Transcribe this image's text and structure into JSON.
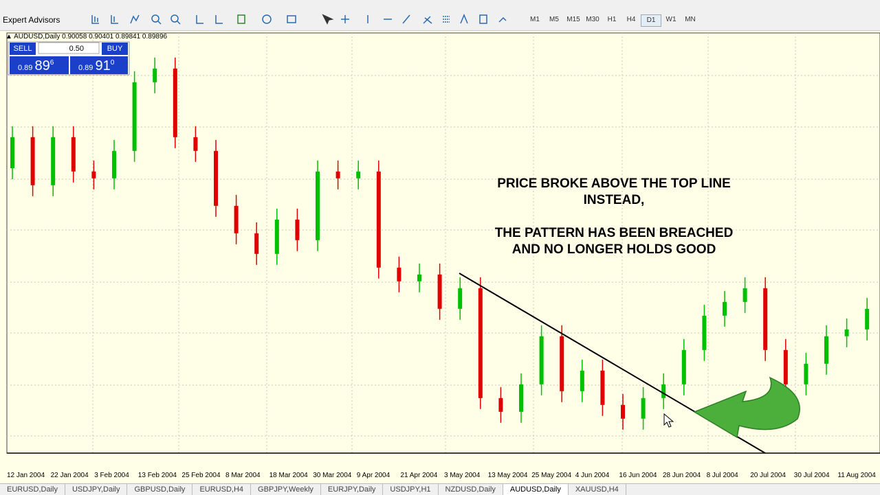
{
  "toolbar": {
    "expert_advisors": "Expert Advisors",
    "timeframes": [
      "M1",
      "M5",
      "M15",
      "M30",
      "H1",
      "H4",
      "D1",
      "W1",
      "MN"
    ],
    "active_timeframe": "D1"
  },
  "symbol_header": {
    "symbol": "AUDUSD,Daily",
    "ohlc": "0.90058 0.90401 0.89841 0.89896"
  },
  "trade_panel": {
    "sell": "SELL",
    "lot": "0.50",
    "buy": "BUY",
    "bid": {
      "big": "0.89",
      "main": "89",
      "sup": "6"
    },
    "ask": {
      "big": "0.89",
      "main": "91",
      "sup": "0"
    }
  },
  "chart_data": {
    "type": "candlestick",
    "annotation": [
      "PRICE BROKE ABOVE THE TOP LINE",
      "INSTEAD,",
      "THE PATTERN HAS BEEN BREACHED",
      "AND NO LONGER HOLDS GOOD"
    ],
    "x_labels": [
      "12 Jan 2004",
      "22 Jan 2004",
      "3 Feb 2004",
      "13 Feb 2004",
      "25 Feb 2004",
      "8 Mar 2004",
      "18 Mar 2004",
      "30 Mar 2004",
      "9 Apr 2004",
      "21 Apr 2004",
      "3 May 2004",
      "13 May 2004",
      "25 May 2004",
      "4 Jun 2004",
      "16 Jun 2004",
      "28 Jun 2004",
      "8 Jul 2004",
      "20 Jul 2004",
      "30 Jul 2004",
      "11 Aug 2004"
    ],
    "up_color": "#00c000",
    "down_color": "#e00000",
    "ylim": [
      0.665,
      0.815
    ],
    "open": [
      0.77,
      0.7813,
      0.7638,
      0.7813,
      0.7688,
      0.7663,
      0.7763,
      0.8013,
      0.8063,
      0.7813,
      0.7763,
      0.7563,
      0.7463,
      0.7388,
      0.7513,
      0.7438,
      0.7688,
      0.7663,
      0.7688,
      0.7338,
      0.7288,
      0.7313,
      0.7188,
      0.7263,
      0.6863,
      0.6813,
      0.6913,
      0.7088,
      0.6888,
      0.6963,
      0.6838,
      0.6788,
      0.6863,
      0.6913,
      0.7038,
      0.7163,
      0.7213,
      0.7263,
      0.7038,
      0.6913,
      0.6988,
      0.7088,
      0.7113
    ],
    "high": [
      0.7853,
      0.7853,
      0.7853,
      0.7853,
      0.7728,
      0.7803,
      0.8053,
      0.8103,
      0.8103,
      0.7853,
      0.7803,
      0.7603,
      0.7503,
      0.7553,
      0.7553,
      0.7728,
      0.7728,
      0.7728,
      0.7728,
      0.7378,
      0.7353,
      0.7353,
      0.7303,
      0.7303,
      0.6903,
      0.6953,
      0.7128,
      0.7128,
      0.7003,
      0.7003,
      0.6878,
      0.6903,
      0.6953,
      0.7078,
      0.7203,
      0.7253,
      0.7303,
      0.7303,
      0.7078,
      0.7028,
      0.7128,
      0.7153,
      0.7228
    ],
    "low": [
      0.766,
      0.7598,
      0.7598,
      0.7648,
      0.7623,
      0.7623,
      0.7723,
      0.7973,
      0.7773,
      0.7723,
      0.7523,
      0.7423,
      0.7348,
      0.7348,
      0.7398,
      0.7398,
      0.7623,
      0.7623,
      0.7298,
      0.7248,
      0.7248,
      0.7148,
      0.7148,
      0.6823,
      0.6773,
      0.6773,
      0.6873,
      0.6848,
      0.6848,
      0.6798,
      0.6748,
      0.6748,
      0.6823,
      0.6873,
      0.6998,
      0.7123,
      0.7173,
      0.6998,
      0.6873,
      0.6873,
      0.6948,
      0.7048,
      0.7073
    ],
    "close": [
      0.7813,
      0.7638,
      0.7813,
      0.7688,
      0.7663,
      0.7763,
      0.8013,
      0.8063,
      0.7813,
      0.7763,
      0.7563,
      0.7463,
      0.7388,
      0.7513,
      0.7438,
      0.7688,
      0.7663,
      0.7688,
      0.7338,
      0.7288,
      0.7313,
      0.7188,
      0.7263,
      0.6863,
      0.6813,
      0.6913,
      0.7088,
      0.6888,
      0.6963,
      0.6838,
      0.6788,
      0.6863,
      0.6913,
      0.7038,
      0.7163,
      0.7213,
      0.7263,
      0.7038,
      0.6913,
      0.6988,
      0.7088,
      0.7113,
      0.7188
    ]
  },
  "tabs": [
    "EURUSD,Daily",
    "USDJPY,Daily",
    "GBPUSD,Daily",
    "EURUSD,H4",
    "GBPJPY,Weekly",
    "EURJPY,Daily",
    "USDJPY,H1",
    "NZDUSD,Daily",
    "AUDUSD,Daily",
    "XAUUSD,H4"
  ],
  "active_tab": "AUDUSD,Daily"
}
